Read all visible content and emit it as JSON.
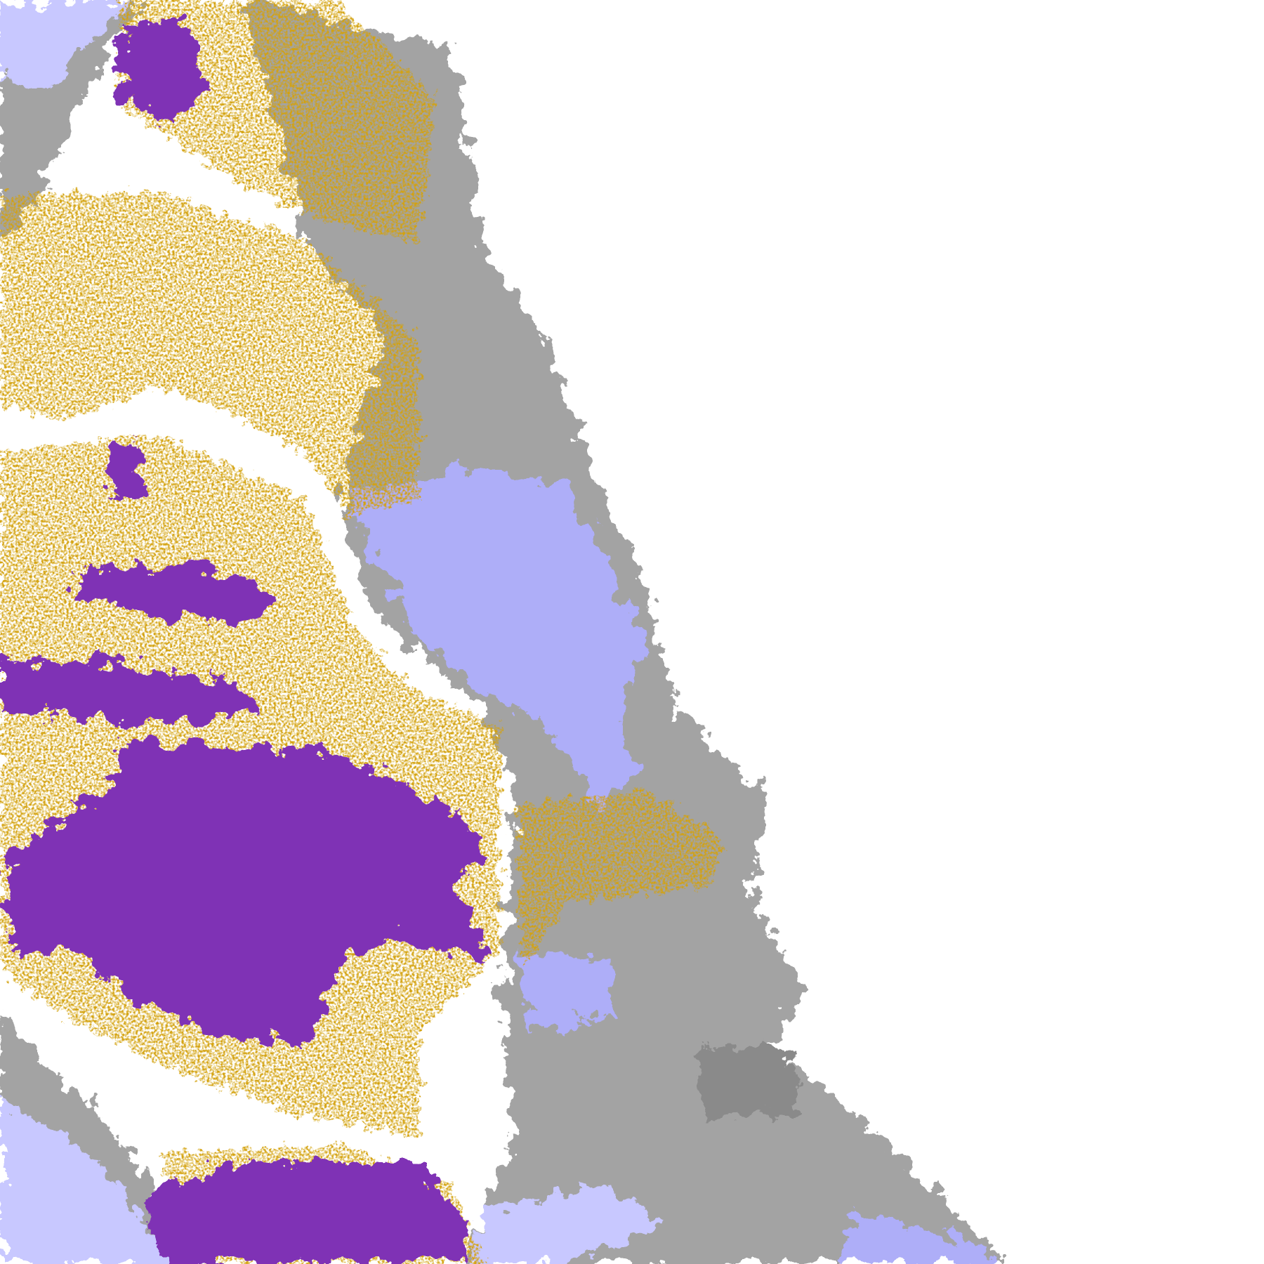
{
  "palette": {
    "background": "#ffffff",
    "gold": "#d4a20c",
    "purple": "#7f33b5",
    "grey": "#a3a3a3",
    "dark_grey": "#8a8a8a",
    "lavender": "#aeaef8",
    "light_lavender": "#c8c8ff",
    "magenta": "#c050e0"
  }
}
